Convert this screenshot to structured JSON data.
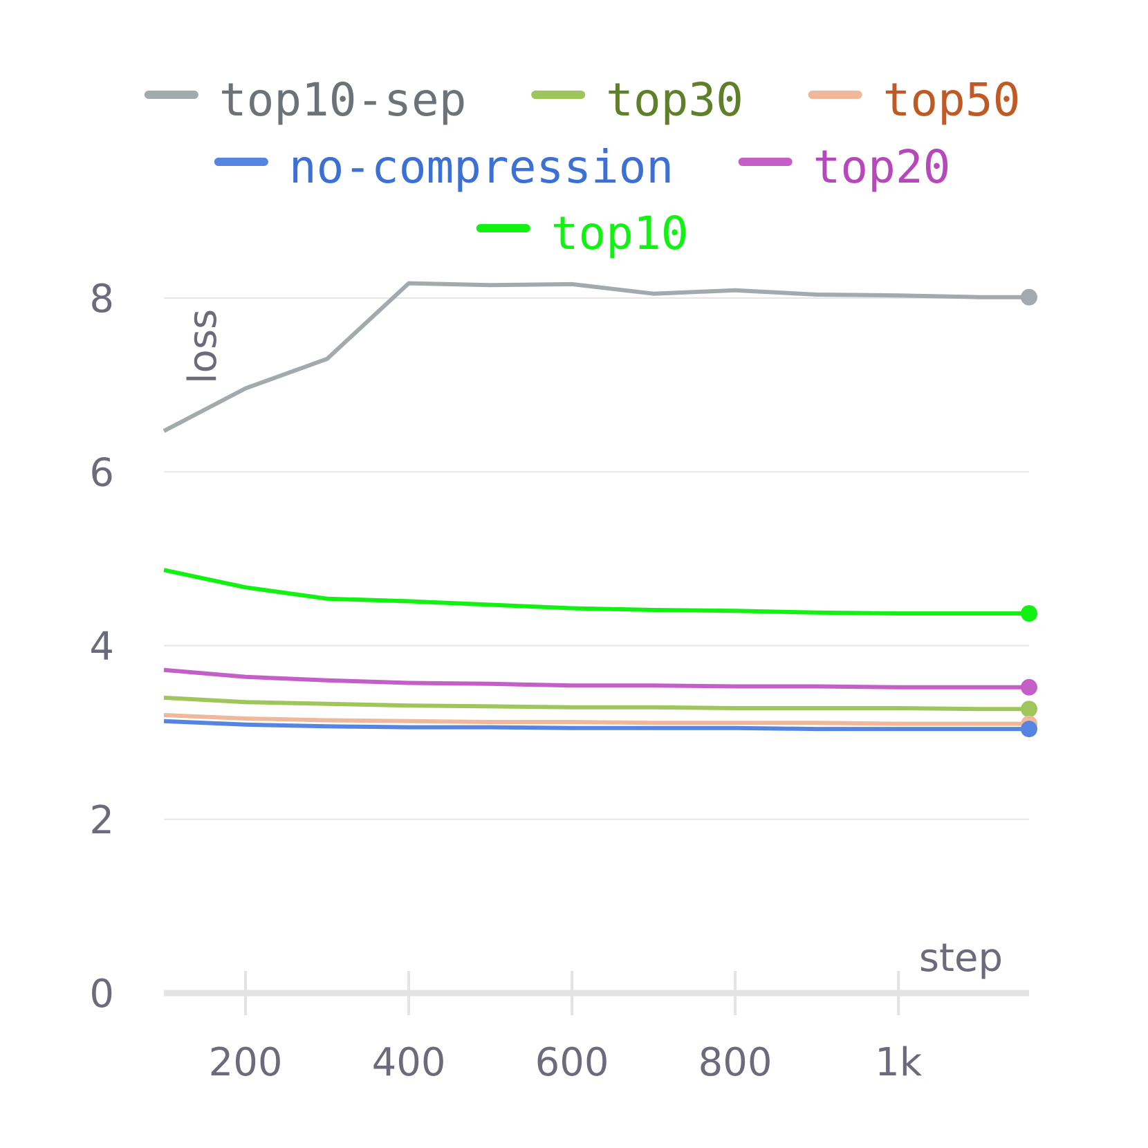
{
  "chart_data": {
    "type": "line",
    "xlabel": "step",
    "ylabel": "loss",
    "xlim": [
      100,
      1160
    ],
    "ylim": [
      0,
      8.4
    ],
    "x_ticks": [
      {
        "value": 200,
        "label": "200"
      },
      {
        "value": 400,
        "label": "400"
      },
      {
        "value": 600,
        "label": "600"
      },
      {
        "value": 800,
        "label": "800"
      },
      {
        "value": 1000,
        "label": "1k"
      }
    ],
    "y_ticks": [
      {
        "value": 0,
        "label": "0"
      },
      {
        "value": 2,
        "label": "2"
      },
      {
        "value": 4,
        "label": "4"
      },
      {
        "value": 6,
        "label": "6"
      },
      {
        "value": 8,
        "label": "8"
      }
    ],
    "grid": true,
    "legend_position": "top-center",
    "x": [
      100,
      200,
      300,
      400,
      500,
      600,
      700,
      800,
      900,
      1000,
      1100,
      1160
    ],
    "series": [
      {
        "name": "top10-sep",
        "color": "#a3aaad",
        "label_color": "#6b7378",
        "values": [
          6.47,
          6.96,
          7.3,
          8.17,
          8.15,
          8.16,
          8.05,
          8.09,
          8.04,
          8.03,
          8.01,
          8.01
        ]
      },
      {
        "name": "top30",
        "color": "#9fc65a",
        "label_color": "#5f7f2a",
        "values": [
          3.4,
          3.35,
          3.33,
          3.31,
          3.3,
          3.29,
          3.29,
          3.28,
          3.28,
          3.28,
          3.27,
          3.27
        ]
      },
      {
        "name": "top50",
        "color": "#f0b89a",
        "label_color": "#c05a25",
        "values": [
          3.2,
          3.16,
          3.14,
          3.13,
          3.12,
          3.12,
          3.11,
          3.11,
          3.11,
          3.1,
          3.1,
          3.1
        ]
      },
      {
        "name": "no-compression",
        "color": "#5585df",
        "label_color": "#3c70d4",
        "values": [
          3.13,
          3.09,
          3.07,
          3.06,
          3.06,
          3.05,
          3.05,
          3.05,
          3.04,
          3.04,
          3.04,
          3.04
        ]
      },
      {
        "name": "top20",
        "color": "#c45fc8",
        "label_color": "#b748bb",
        "values": [
          3.72,
          3.64,
          3.6,
          3.57,
          3.56,
          3.54,
          3.54,
          3.53,
          3.53,
          3.52,
          3.52,
          3.52
        ]
      },
      {
        "name": "top10",
        "color": "#12f212",
        "label_color": "#12f212",
        "values": [
          4.87,
          4.67,
          4.54,
          4.51,
          4.47,
          4.43,
          4.41,
          4.4,
          4.38,
          4.37,
          4.37,
          4.37
        ]
      }
    ],
    "legend_rows": [
      [
        "top10-sep",
        "top30",
        "top50"
      ],
      [
        "no-compression",
        "top20"
      ],
      [
        "top10"
      ]
    ]
  }
}
